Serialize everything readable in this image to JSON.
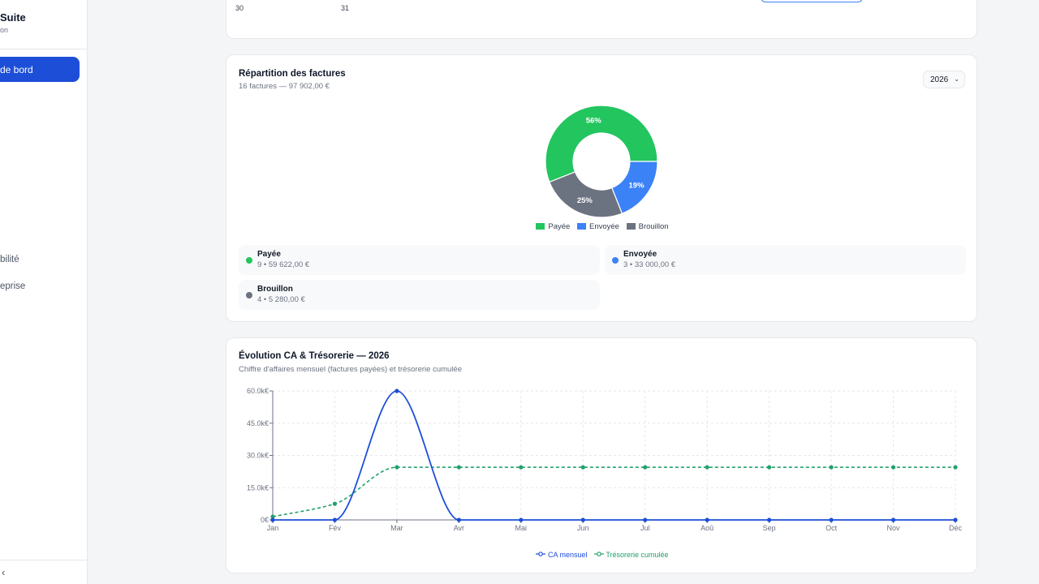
{
  "sidebar": {
    "brand_name": "Suite",
    "brand_sub": "on",
    "active_item": "de bord",
    "items": [
      {
        "label": "bilité"
      },
      {
        "label": "eprise"
      }
    ],
    "collapse_glyph": "‹"
  },
  "calendar_strip": {
    "days": [
      "30",
      "31"
    ]
  },
  "donut_card": {
    "title": "Répartition des factures",
    "subtitle": "16 factures — 97 902,00 €",
    "year_select": "2026",
    "chart_data": {
      "type": "pie",
      "title": "",
      "slices": [
        {
          "name": "Payée",
          "value": 56,
          "label": "56%",
          "color": "#22c55e"
        },
        {
          "name": "Brouillon",
          "value": 25,
          "label": "25%",
          "color": "#6b7280"
        },
        {
          "name": "Envoyée",
          "value": 19,
          "label": "19%",
          "color": "#3b82f6"
        }
      ],
      "legend": [
        {
          "name": "Payée",
          "color": "#22c55e"
        },
        {
          "name": "Envoyée",
          "color": "#3b82f6"
        },
        {
          "name": "Brouillon",
          "color": "#6b7280"
        }
      ],
      "legend_position": "bottom"
    },
    "stats": [
      {
        "name": "Payée",
        "value": "9 • 59 622,00 €",
        "color": "#22c55e"
      },
      {
        "name": "Envoyée",
        "value": "3 • 33 000,00 €",
        "color": "#3b82f6"
      },
      {
        "name": "Brouillon",
        "value": "4 • 5 280,00 €",
        "color": "#6b7280"
      }
    ]
  },
  "line_card": {
    "title": "Évolution CA & Trésorerie — 2026",
    "subtitle": "Chiffre d'affaires mensuel (factures payées) et trésorerie cumulée",
    "chart_data": {
      "type": "line",
      "title": "",
      "xlabel": "",
      "ylabel": "",
      "categories": [
        "Jan",
        "Fév",
        "Mar",
        "Avr",
        "Mai",
        "Jun",
        "Jul",
        "Aoû",
        "Sep",
        "Oct",
        "Nov",
        "Déc"
      ],
      "ylim": [
        0,
        60000
      ],
      "y_ticks": [
        0,
        15000,
        30000,
        45000,
        60000
      ],
      "y_tick_labels": [
        "0€",
        "15.0k€",
        "30.0k€",
        "45.0k€",
        "60.0k€"
      ],
      "grid": true,
      "legend_position": "bottom",
      "series": [
        {
          "name": "CA mensuel",
          "color": "#1d4ed8",
          "style": "solid",
          "values": [
            0,
            0,
            60000,
            0,
            0,
            0,
            0,
            0,
            0,
            0,
            0,
            0
          ]
        },
        {
          "name": "Trésorerie cumulée",
          "color": "#22a06b",
          "style": "dashed",
          "values": [
            1500,
            7500,
            24500,
            24500,
            24500,
            24500,
            24500,
            24500,
            24500,
            24500,
            24500,
            24500
          ]
        }
      ]
    }
  }
}
